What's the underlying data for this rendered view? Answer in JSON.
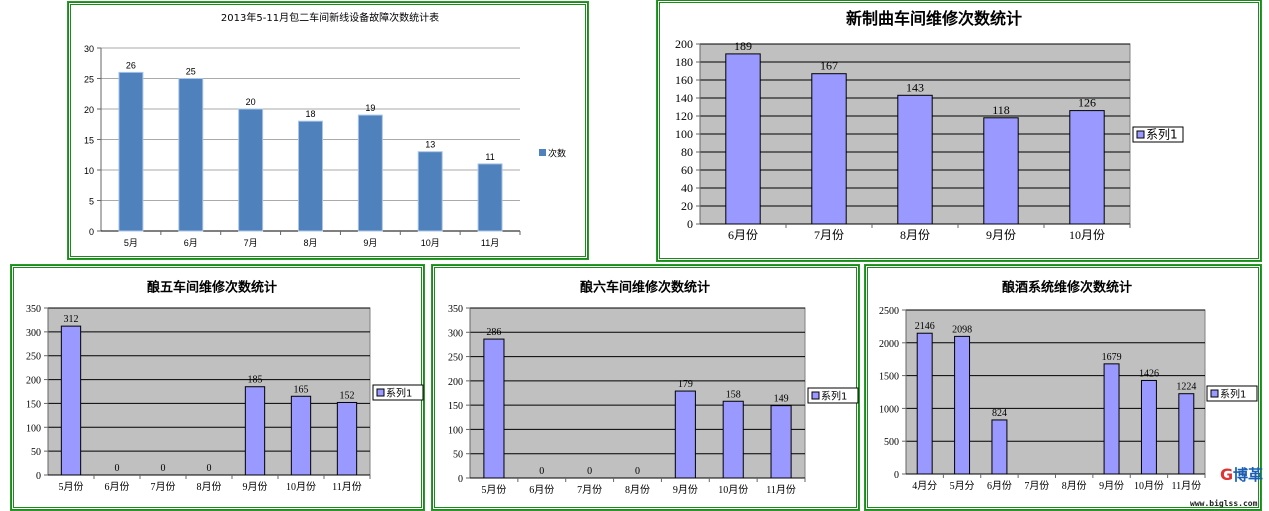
{
  "chart_data": [
    {
      "type": "bar",
      "title": "2013年5-11月包二车间新线设备故障次数统计表",
      "categories": [
        "5月",
        "6月",
        "7月",
        "8月",
        "9月",
        "10月",
        "11月"
      ],
      "series": [
        {
          "name": "次数",
          "values": [
            26,
            25,
            20,
            18,
            19,
            13,
            11
          ]
        }
      ],
      "ylim": [
        0,
        30
      ],
      "yticks": [
        0,
        5,
        10,
        15,
        20,
        25,
        30
      ],
      "grid": true,
      "legend": "right",
      "bar_color": "#4f81bd",
      "plot_bg": "#ffffff"
    },
    {
      "type": "bar",
      "title": "新制曲车间维修次数统计",
      "categories": [
        "6月份",
        "7月份",
        "8月份",
        "9月份",
        "10月份"
      ],
      "series": [
        {
          "name": "系列1",
          "values": [
            189,
            167,
            143,
            118,
            126
          ]
        }
      ],
      "ylim": [
        0,
        200
      ],
      "yticks": [
        0,
        20,
        40,
        60,
        80,
        100,
        120,
        140,
        160,
        180,
        200
      ],
      "grid": true,
      "legend": "right",
      "bar_color": "#9999ff",
      "plot_bg": "#c0c0c0"
    },
    {
      "type": "bar",
      "title": "酿五车间维修次数统计",
      "categories": [
        "5月份",
        "6月份",
        "7月份",
        "8月份",
        "9月份",
        "10月份",
        "11月份"
      ],
      "series": [
        {
          "name": "系列1",
          "values": [
            312,
            0,
            0,
            0,
            185,
            165,
            152
          ]
        }
      ],
      "ylim": [
        0,
        350
      ],
      "yticks": [
        0,
        50,
        100,
        150,
        200,
        250,
        300,
        350
      ],
      "grid": true,
      "legend": "right",
      "bar_color": "#9999ff",
      "plot_bg": "#c0c0c0"
    },
    {
      "type": "bar",
      "title": "酿六车间维修次数统计",
      "categories": [
        "5月份",
        "6月份",
        "7月份",
        "8月份",
        "9月份",
        "10月份",
        "11月份"
      ],
      "series": [
        {
          "name": "系列1",
          "values": [
            286,
            0,
            0,
            0,
            179,
            158,
            149
          ]
        }
      ],
      "ylim": [
        0,
        350
      ],
      "yticks": [
        0,
        50,
        100,
        150,
        200,
        250,
        300,
        350
      ],
      "grid": true,
      "legend": "right",
      "bar_color": "#9999ff",
      "plot_bg": "#c0c0c0"
    },
    {
      "type": "bar",
      "title": "酿酒系统维修次数统计",
      "categories": [
        "4月分",
        "5月分",
        "6月份",
        "7月份",
        "8月份",
        "9月份",
        "10月份",
        "11月份"
      ],
      "series": [
        {
          "name": "系列1",
          "values": [
            2146,
            2098,
            824,
            null,
            null,
            1679,
            1426,
            1224
          ]
        }
      ],
      "ylim": [
        0,
        2500
      ],
      "yticks": [
        0,
        500,
        1000,
        1500,
        2000,
        2500
      ],
      "grid": true,
      "legend": "right",
      "bar_color": "#9999ff",
      "plot_bg": "#c0c0c0"
    }
  ],
  "watermark": {
    "brand": "博革",
    "url": "www.biglss.com"
  }
}
